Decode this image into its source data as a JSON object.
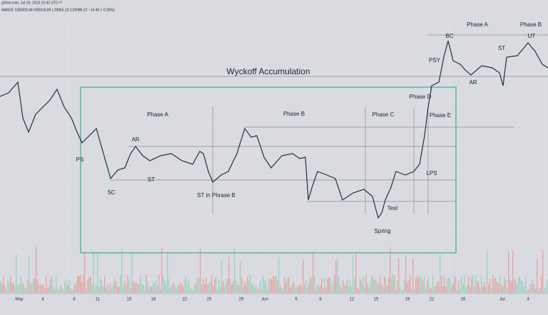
{
  "header": {
    "info": "gView.com, Jul 19, 2023 15:42 UTC+7",
    "ohlc": "NANCE O30000.68 H30016.86 L29956.23 C29986.22 −14.46 (−0.05%)"
  },
  "title": "Wyckoff Accumulation",
  "annotations": [
    "PS",
    "SC",
    "AR",
    "ST",
    "Phase A",
    "ST in Phrase B",
    "Phase B",
    "Phase C",
    "Phase D",
    "Phase E",
    "LPS",
    "Test",
    "Spring",
    "PSY",
    "BC",
    "Phase A",
    "AR",
    "ST",
    "UT",
    "Phase B"
  ],
  "x_axis": [
    "May",
    "4",
    "8",
    "11",
    "15",
    "18",
    "22",
    "25",
    "29",
    "Jun",
    "5",
    "8",
    "12",
    "15",
    "19",
    "22",
    "26",
    "Jul",
    "4"
  ]
}
